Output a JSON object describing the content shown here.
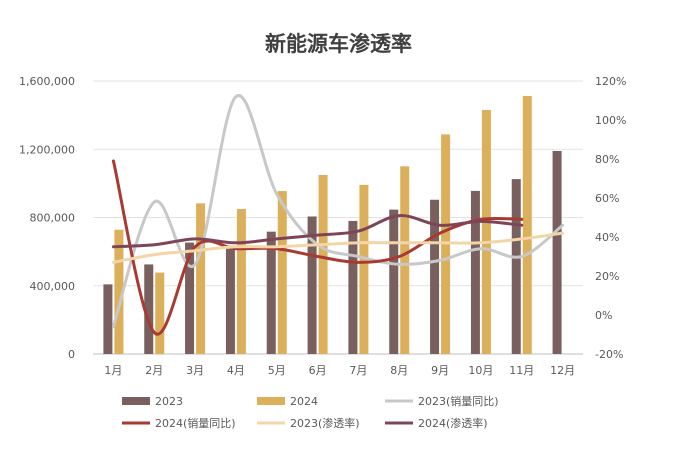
{
  "chart_data": {
    "type": "bar",
    "title": "新能源车渗透率",
    "categories": [
      "1月",
      "2月",
      "3月",
      "4月",
      "5月",
      "6月",
      "7月",
      "8月",
      "9月",
      "10月",
      "11月",
      "12月"
    ],
    "y_left": {
      "lim": [
        0,
        1600000
      ],
      "ticks": [
        0,
        400000,
        800000,
        1200000,
        1600000
      ],
      "tick_labels": [
        "0",
        "400,000",
        "800,000",
        "1,200,000",
        "1,600,000"
      ]
    },
    "y_right": {
      "lim": [
        -20,
        120
      ],
      "ticks": [
        -20,
        0,
        20,
        40,
        60,
        80,
        100,
        120
      ],
      "tick_labels": [
        "-20%",
        "0%",
        "20%",
        "40%",
        "60%",
        "80%",
        "100%",
        "120%"
      ]
    },
    "grid": true,
    "legend_position": "bottom",
    "bar_series": [
      {
        "name": "2023",
        "color": "#7a5f5f",
        "values": [
          408000,
          525000,
          653000,
          636000,
          717000,
          806000,
          780000,
          846000,
          904000,
          956000,
          1025000,
          1190000
        ]
      },
      {
        "name": "2024",
        "color": "#dcb05a",
        "values": [
          728000,
          477000,
          883000,
          850000,
          955000,
          1049000,
          991000,
          1100000,
          1287000,
          1430000,
          1512000,
          null
        ]
      }
    ],
    "line_series": [
      {
        "name": "2023(销量同比)",
        "color": "#c8c8c8",
        "values": [
          -6,
          58,
          26,
          112,
          62,
          36,
          30,
          26,
          28,
          34,
          30,
          46
        ]
      },
      {
        "name": "2024(销量同比)",
        "color": "#a83a32",
        "values": [
          79,
          -9,
          35,
          34,
          34,
          30,
          27,
          30,
          42,
          49,
          49,
          null
        ]
      },
      {
        "name": "2023(渗透率)",
        "color": "#f2d6a8",
        "values": [
          27,
          31,
          33,
          35,
          35,
          36,
          37,
          37,
          37,
          37,
          39,
          42
        ]
      },
      {
        "name": "2024(渗透率)",
        "color": "#7e4558",
        "values": [
          35,
          36,
          39,
          37,
          39,
          41,
          43,
          51,
          46,
          48,
          46,
          null
        ]
      }
    ]
  }
}
